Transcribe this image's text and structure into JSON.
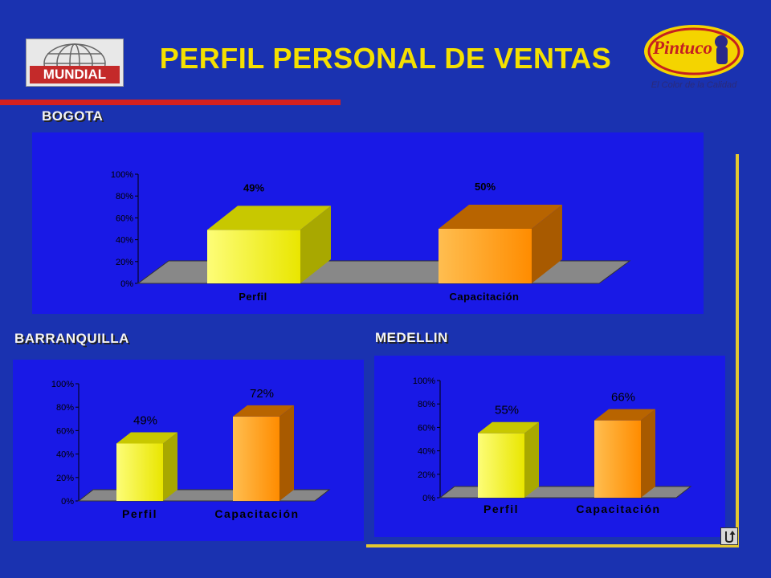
{
  "header": {
    "title": "PERFIL PERSONAL DE VENTAS",
    "logo_left": "MUNDIAL",
    "logo_right": "Pintuco",
    "logo_right_tagline": "El Color de la Calidad"
  },
  "colors": {
    "background": "#1a32b0",
    "panel": "#1919e6",
    "title": "#f5e000",
    "rule": "#d42020",
    "frame": "#e4c830",
    "bar_perfil": "#f0f020",
    "bar_capacitacion": "#ff9a00",
    "floor": "#888888"
  },
  "icons": {
    "return": "return-arrow-icon"
  },
  "chart_data": [
    {
      "type": "bar",
      "label": "BOGOTA",
      "categories": [
        "Perfil",
        "Capacitación"
      ],
      "values": [
        49,
        50
      ],
      "value_labels": [
        "49%",
        "50%"
      ],
      "yticks": [
        "0%",
        "20%",
        "40%",
        "60%",
        "80%",
        "100%"
      ],
      "ylim": [
        0,
        100
      ],
      "grid": false,
      "legend": "none"
    },
    {
      "type": "bar",
      "label": "BARRANQUILLA",
      "categories": [
        "Perfil",
        "Capacitación"
      ],
      "values": [
        49,
        72
      ],
      "value_labels": [
        "49%",
        "72%"
      ],
      "yticks": [
        "0%",
        "20%",
        "40%",
        "60%",
        "80%",
        "100%"
      ],
      "ylim": [
        0,
        100
      ],
      "grid": false,
      "legend": "none"
    },
    {
      "type": "bar",
      "label": "MEDELLIN",
      "categories": [
        "Perfil",
        "Capacitación"
      ],
      "values": [
        55,
        66
      ],
      "value_labels": [
        "55%",
        "66%"
      ],
      "yticks": [
        "0%",
        "20%",
        "40%",
        "60%",
        "80%",
        "100%"
      ],
      "ylim": [
        0,
        100
      ],
      "grid": false,
      "legend": "none"
    }
  ]
}
